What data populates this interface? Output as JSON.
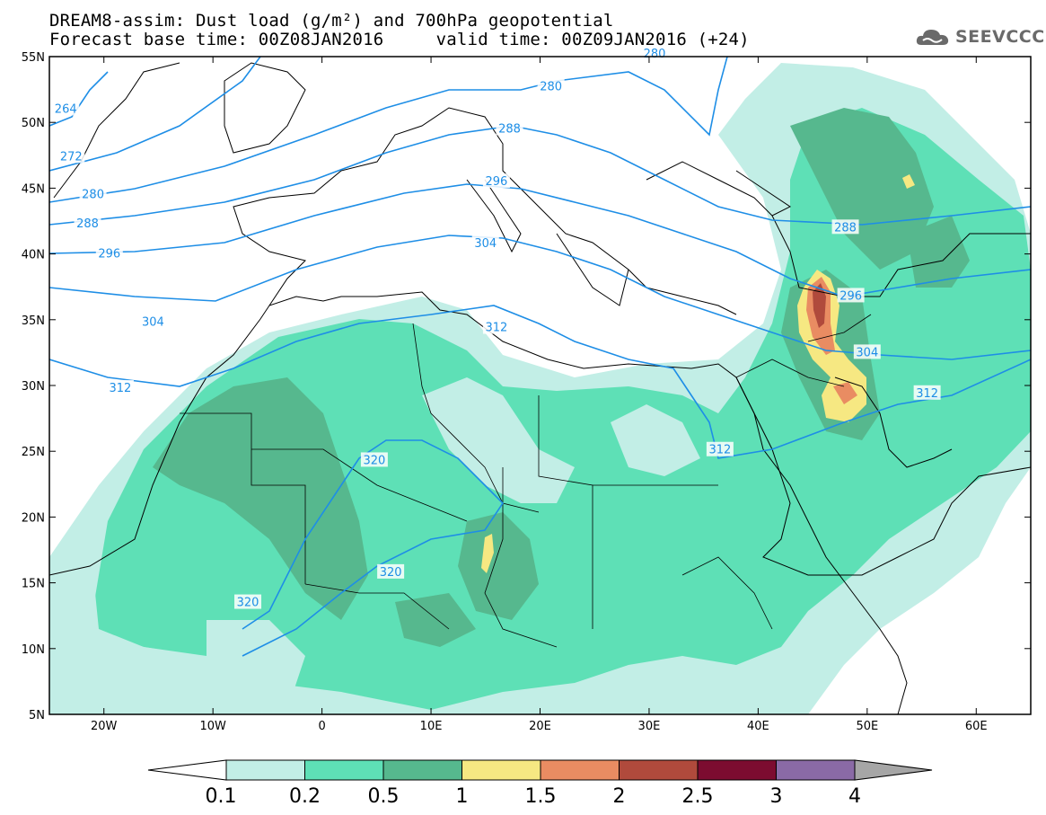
{
  "header": {
    "title_line1": "DREAM8-assim: Dust load (g/m²) and 700hPa geopotential",
    "title_line2": "Forecast base time: 00Z08JAN2016     valid time: 00Z09JAN2016 (+24)",
    "logo_text": "SEEVCCC"
  },
  "map": {
    "lon_range": [
      -25,
      65
    ],
    "lat_range": [
      5,
      55
    ],
    "lat_labels": [
      "5N",
      "10N",
      "15N",
      "20N",
      "25N",
      "30N",
      "35N",
      "40N",
      "45N",
      "50N",
      "55N"
    ],
    "lon_labels": [
      "20W",
      "10W",
      "0",
      "10E",
      "20E",
      "30E",
      "40E",
      "50E",
      "60E"
    ],
    "contour_labels": [
      {
        "text": "264",
        "lon": -23.5,
        "lat": 51.0
      },
      {
        "text": "272",
        "lon": -23.0,
        "lat": 47.4
      },
      {
        "text": "280",
        "lon": -21.0,
        "lat": 44.5
      },
      {
        "text": "288",
        "lon": -21.5,
        "lat": 42.3
      },
      {
        "text": "296",
        "lon": -19.5,
        "lat": 40.0
      },
      {
        "text": "304",
        "lon": -15.5,
        "lat": 34.8
      },
      {
        "text": "312",
        "lon": -18.5,
        "lat": 29.8
      },
      {
        "text": "320",
        "lon": 4.8,
        "lat": 24.3
      },
      {
        "text": "320",
        "lon": 6.3,
        "lat": 15.8
      },
      {
        "text": "320",
        "lon": -6.8,
        "lat": 13.5
      },
      {
        "text": "312",
        "lon": 16.0,
        "lat": 34.4
      },
      {
        "text": "304",
        "lon": 15.0,
        "lat": 40.8
      },
      {
        "text": "296",
        "lon": 16.0,
        "lat": 45.5
      },
      {
        "text": "288",
        "lon": 17.2,
        "lat": 49.5
      },
      {
        "text": "280",
        "lon": 21.0,
        "lat": 52.7
      },
      {
        "text": "280",
        "lon": 30.5,
        "lat": 55.2
      },
      {
        "text": "288",
        "lon": 48.0,
        "lat": 42.0
      },
      {
        "text": "296",
        "lon": 48.5,
        "lat": 36.8
      },
      {
        "text": "304",
        "lon": 50.0,
        "lat": 32.5
      },
      {
        "text": "312",
        "lon": 55.5,
        "lat": 29.4
      },
      {
        "text": "312",
        "lon": 36.5,
        "lat": 25.1
      }
    ]
  },
  "colorbar": {
    "labels": [
      "0.1",
      "0.2",
      "0.5",
      "1",
      "1.5",
      "2",
      "2.5",
      "3",
      "4"
    ],
    "colors": [
      "#c2eee6",
      "#5ee0b6",
      "#56b88e",
      "#f6e882",
      "#e98c62",
      "#b04a3c",
      "#7c0c30",
      "#8a6aa6",
      "#a6a6a6"
    ]
  },
  "colors": {
    "contour": "#1e8ee6",
    "dust_01": "#c2eee6",
    "dust_02": "#5ee0b6",
    "dust_05": "#56b88e",
    "dust_1": "#f6e882",
    "dust_15": "#e98c62",
    "dust_2": "#b04a3c",
    "dust_25": "#7c0c30"
  }
}
